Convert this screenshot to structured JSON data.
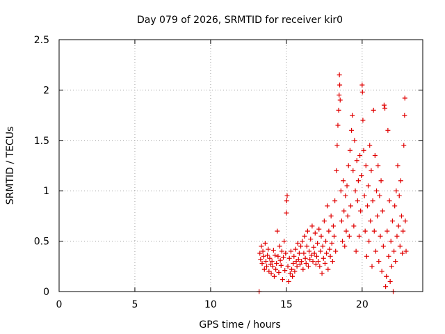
{
  "chart_data": {
    "type": "scatter",
    "title": "Day 079 of 2026, SRMTID for receiver kir0",
    "xlabel": "GPS time / hours",
    "ylabel": "SRMTID / TECUs",
    "xlim": [
      0,
      24
    ],
    "ylim": [
      0,
      2.5
    ],
    "x_ticks": [
      0,
      5,
      10,
      15,
      20
    ],
    "x_tick_labels": [
      "0",
      "5",
      "10",
      "15",
      "20"
    ],
    "y_ticks": [
      0,
      0.5,
      1,
      1.5,
      2,
      2.5
    ],
    "y_tick_labels": [
      "0",
      "0.5",
      "1",
      "1.5",
      "2",
      "2.5"
    ],
    "grid": true,
    "marker": "+",
    "color": "#e00000",
    "series": [
      {
        "name": "SRMTID",
        "points": [
          [
            13.2,
            0.0
          ],
          [
            13.25,
            0.38
          ],
          [
            13.3,
            0.32
          ],
          [
            13.35,
            0.45
          ],
          [
            13.4,
            0.28
          ],
          [
            13.45,
            0.4
          ],
          [
            13.5,
            0.35
          ],
          [
            13.55,
            0.22
          ],
          [
            13.6,
            0.48
          ],
          [
            13.65,
            0.3
          ],
          [
            13.7,
            0.25
          ],
          [
            13.75,
            0.36
          ],
          [
            13.8,
            0.42
          ],
          [
            13.85,
            0.2
          ],
          [
            13.9,
            0.33
          ],
          [
            13.95,
            0.27
          ],
          [
            14.0,
            0.18
          ],
          [
            14.05,
            0.3
          ],
          [
            14.1,
            0.25
          ],
          [
            14.15,
            0.41
          ],
          [
            14.2,
            0.15
          ],
          [
            14.25,
            0.36
          ],
          [
            14.3,
            0.22
          ],
          [
            14.35,
            0.28
          ],
          [
            14.4,
            0.6
          ],
          [
            14.45,
            0.35
          ],
          [
            14.5,
            0.19
          ],
          [
            14.55,
            0.45
          ],
          [
            14.6,
            0.31
          ],
          [
            14.65,
            0.26
          ],
          [
            14.7,
            0.4
          ],
          [
            14.75,
            0.12
          ],
          [
            14.8,
            0.34
          ],
          [
            14.85,
            0.5
          ],
          [
            14.9,
            0.21
          ],
          [
            14.95,
            0.38
          ],
          [
            15.0,
            0.78
          ],
          [
            15.02,
            0.9
          ],
          [
            15.05,
            0.95
          ],
          [
            15.1,
            0.25
          ],
          [
            15.15,
            0.1
          ],
          [
            15.2,
            0.33
          ],
          [
            15.25,
            0.18
          ],
          [
            15.3,
            0.4
          ],
          [
            15.35,
            0.22
          ],
          [
            15.4,
            0.15
          ],
          [
            15.45,
            0.28
          ],
          [
            15.5,
            0.35
          ],
          [
            15.55,
            0.2
          ],
          [
            15.6,
            0.42
          ],
          [
            15.65,
            0.3
          ],
          [
            15.7,
            0.25
          ],
          [
            15.75,
            0.48
          ],
          [
            15.8,
            0.32
          ],
          [
            15.85,
            0.38
          ],
          [
            15.9,
            0.27
          ],
          [
            15.95,
            0.45
          ],
          [
            16.0,
            0.3
          ],
          [
            16.05,
            0.5
          ],
          [
            16.1,
            0.22
          ],
          [
            16.15,
            0.38
          ],
          [
            16.2,
            0.55
          ],
          [
            16.25,
            0.33
          ],
          [
            16.3,
            0.28
          ],
          [
            16.35,
            0.45
          ],
          [
            16.4,
            0.6
          ],
          [
            16.45,
            0.25
          ],
          [
            16.5,
            0.4
          ],
          [
            16.55,
            0.32
          ],
          [
            16.6,
            0.52
          ],
          [
            16.65,
            0.36
          ],
          [
            16.7,
            0.65
          ],
          [
            16.75,
            0.3
          ],
          [
            16.8,
            0.44
          ],
          [
            16.85,
            0.38
          ],
          [
            16.9,
            0.58
          ],
          [
            16.95,
            0.27
          ],
          [
            17.0,
            0.35
          ],
          [
            17.05,
            0.48
          ],
          [
            17.1,
            0.3
          ],
          [
            17.15,
            0.62
          ],
          [
            17.2,
            0.25
          ],
          [
            17.25,
            0.4
          ],
          [
            17.3,
            0.55
          ],
          [
            17.35,
            0.18
          ],
          [
            17.4,
            0.45
          ],
          [
            17.45,
            0.33
          ],
          [
            17.5,
            0.7
          ],
          [
            17.55,
            0.28
          ],
          [
            17.6,
            0.5
          ],
          [
            17.65,
            0.38
          ],
          [
            17.7,
            0.85
          ],
          [
            17.75,
            0.22
          ],
          [
            17.8,
            0.6
          ],
          [
            17.85,
            0.42
          ],
          [
            17.9,
            0.35
          ],
          [
            17.95,
            0.75
          ],
          [
            18.0,
            0.48
          ],
          [
            18.05,
            0.3
          ],
          [
            18.1,
            0.65
          ],
          [
            18.15,
            0.55
          ],
          [
            18.2,
            0.9
          ],
          [
            18.25,
            0.4
          ],
          [
            18.3,
            1.2
          ],
          [
            18.35,
            1.45
          ],
          [
            18.4,
            1.65
          ],
          [
            18.45,
            1.8
          ],
          [
            18.48,
            1.95
          ],
          [
            18.5,
            2.15
          ],
          [
            18.52,
            2.05
          ],
          [
            18.55,
            1.9
          ],
          [
            18.6,
            1.0
          ],
          [
            18.65,
            0.7
          ],
          [
            18.7,
            0.5
          ],
          [
            18.75,
            1.1
          ],
          [
            18.8,
            0.8
          ],
          [
            18.85,
            0.45
          ],
          [
            18.9,
            0.95
          ],
          [
            18.95,
            0.6
          ],
          [
            19.0,
            1.05
          ],
          [
            19.05,
            0.75
          ],
          [
            19.1,
            1.25
          ],
          [
            19.15,
            0.55
          ],
          [
            19.2,
            1.4
          ],
          [
            19.25,
            0.85
          ],
          [
            19.3,
            1.6
          ],
          [
            19.35,
            1.75
          ],
          [
            19.4,
            1.2
          ],
          [
            19.45,
            0.65
          ],
          [
            19.5,
            1.5
          ],
          [
            19.55,
            1.0
          ],
          [
            19.6,
            0.4
          ],
          [
            19.65,
            1.3
          ],
          [
            19.7,
            0.9
          ],
          [
            19.75,
            1.1
          ],
          [
            19.8,
            0.55
          ],
          [
            19.85,
            1.35
          ],
          [
            19.9,
            0.8
          ],
          [
            19.95,
            1.15
          ],
          [
            20.0,
            2.05
          ],
          [
            20.02,
            1.98
          ],
          [
            20.05,
            1.7
          ],
          [
            20.1,
            1.4
          ],
          [
            20.15,
            0.95
          ],
          [
            20.2,
            0.6
          ],
          [
            20.25,
            1.25
          ],
          [
            20.3,
            0.35
          ],
          [
            20.35,
            0.85
          ],
          [
            20.4,
            1.05
          ],
          [
            20.45,
            0.5
          ],
          [
            20.5,
            1.45
          ],
          [
            20.55,
            0.7
          ],
          [
            20.6,
            1.2
          ],
          [
            20.65,
            0.25
          ],
          [
            20.7,
            0.9
          ],
          [
            20.75,
            1.8
          ],
          [
            20.8,
            0.6
          ],
          [
            20.85,
            1.35
          ],
          [
            20.9,
            0.4
          ],
          [
            20.95,
            1.0
          ],
          [
            21.0,
            0.75
          ],
          [
            21.05,
            1.25
          ],
          [
            21.1,
            0.3
          ],
          [
            21.15,
            0.95
          ],
          [
            21.2,
            0.55
          ],
          [
            21.25,
            1.1
          ],
          [
            21.3,
            0.2
          ],
          [
            21.35,
            0.8
          ],
          [
            21.4,
            0.45
          ],
          [
            21.45,
            1.85
          ],
          [
            21.5,
            1.82
          ],
          [
            21.55,
            0.05
          ],
          [
            21.6,
            0.15
          ],
          [
            21.65,
            0.6
          ],
          [
            21.7,
            1.6
          ],
          [
            21.75,
            0.35
          ],
          [
            21.8,
            0.9
          ],
          [
            21.85,
            0.1
          ],
          [
            21.9,
            0.5
          ],
          [
            21.95,
            0.25
          ],
          [
            22.0,
            0.7
          ],
          [
            22.05,
            0.0
          ],
          [
            22.1,
            0.4
          ],
          [
            22.15,
            0.85
          ],
          [
            22.2,
            0.3
          ],
          [
            22.25,
            1.0
          ],
          [
            22.3,
            0.55
          ],
          [
            22.35,
            1.25
          ],
          [
            22.4,
            0.65
          ],
          [
            22.45,
            0.95
          ],
          [
            22.5,
            0.45
          ],
          [
            22.55,
            1.1
          ],
          [
            22.6,
            0.75
          ],
          [
            22.65,
            0.38
          ],
          [
            22.7,
            0.6
          ],
          [
            22.75,
            1.45
          ],
          [
            22.8,
            1.75
          ],
          [
            22.82,
            1.92
          ],
          [
            22.85,
            0.7
          ],
          [
            22.9,
            0.4
          ]
        ]
      }
    ]
  }
}
